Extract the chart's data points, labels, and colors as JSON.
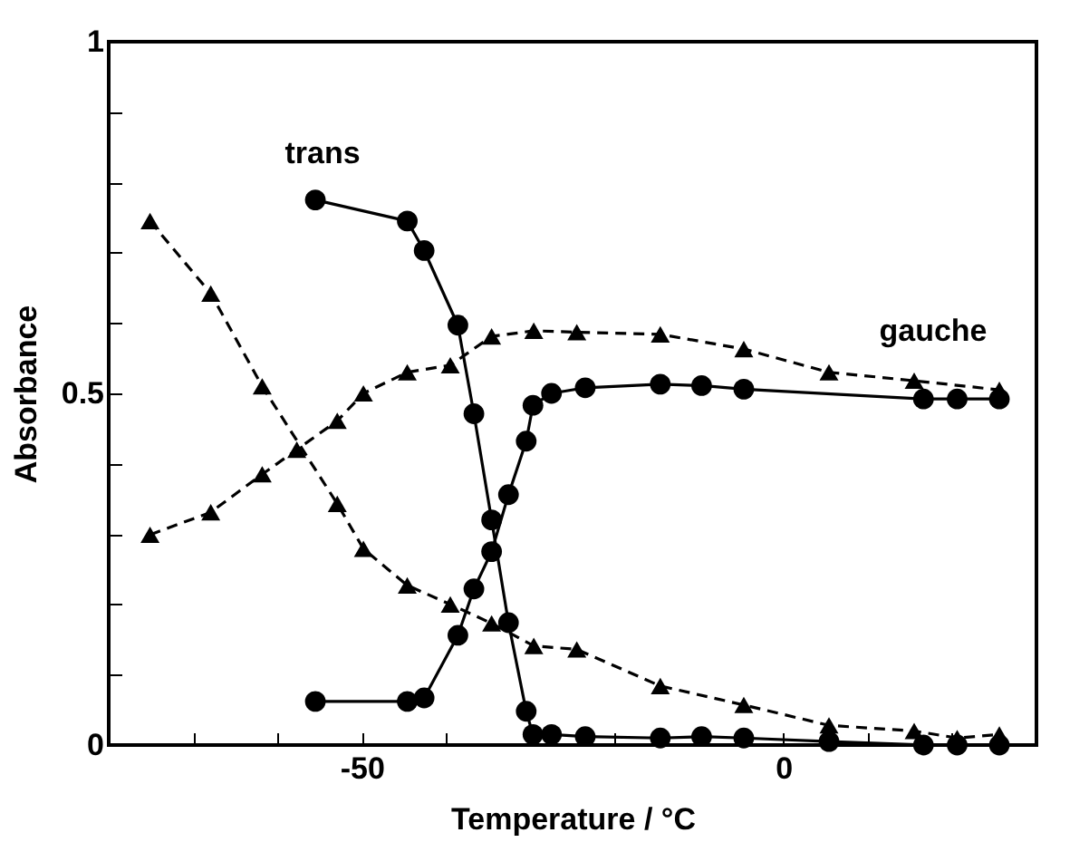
{
  "chart_data": {
    "type": "line",
    "xlabel": "Temperature / °C",
    "ylabel": "Absorbance",
    "annotations": [
      "trans",
      "gauche"
    ],
    "xlim": [
      -80,
      30
    ],
    "ylim": [
      0,
      1
    ],
    "xticks": [
      {
        "value": -70,
        "label": null
      },
      {
        "value": -60,
        "label": null
      },
      -50,
      {
        "value": -40,
        "label": null
      },
      {
        "value": -30,
        "label": null
      },
      {
        "value": -20,
        "label": null
      },
      {
        "value": -10,
        "label": null
      },
      0,
      {
        "value": 10,
        "label": null
      },
      {
        "value": 20,
        "label": null
      }
    ],
    "yticks": [
      0,
      {
        "value": 0.1,
        "label": null
      },
      {
        "value": 0.2,
        "label": null
      },
      {
        "value": 0.3,
        "label": null
      },
      {
        "value": 0.4,
        "label": null
      },
      0.5,
      {
        "value": 0.6,
        "label": null
      },
      {
        "value": 0.7,
        "label": null
      },
      {
        "value": 0.8,
        "label": null
      },
      {
        "value": 0.9,
        "label": null
      },
      1
    ],
    "grid": false,
    "series": [
      {
        "color": "#000000",
        "marker": "circle",
        "line_style": "solid",
        "x": [
          -55.5,
          -44.6,
          -42.6,
          -38.6,
          -36.7,
          -34.6,
          -32.6,
          -30.5,
          -29.7,
          -27.5,
          -23.5,
          -14.6,
          -9.7,
          -4.7,
          5.4,
          16.6,
          20.6,
          25.6
        ],
        "values": [
          0.775,
          0.745,
          0.703,
          0.597,
          0.471,
          0.32,
          0.174,
          0.048,
          0.015,
          0.015,
          0.012,
          0.01,
          0.012,
          0.01,
          0.005,
          0.0,
          0.0,
          0.0
        ]
      },
      {
        "color": "#000000",
        "marker": "circle",
        "line_style": "solid",
        "x": [
          -55.5,
          -44.6,
          -42.6,
          -38.6,
          -36.7,
          -34.6,
          -32.6,
          -30.5,
          -29.7,
          -27.5,
          -23.5,
          -14.6,
          -9.7,
          -4.7,
          16.6,
          20.6,
          25.6
        ],
        "values": [
          0.062,
          0.062,
          0.067,
          0.156,
          0.222,
          0.275,
          0.356,
          0.432,
          0.483,
          0.5,
          0.508,
          0.513,
          0.511,
          0.506,
          0.492,
          0.492,
          0.492
        ]
      },
      {
        "color": "#000000",
        "marker": "triangle",
        "line_style": "dashed",
        "x": [
          -75.1,
          -67.9,
          -61.8,
          -57.7,
          -52.9,
          -49.8,
          -44.6,
          -39.5,
          -34.6,
          -29.6,
          -24.5,
          -14.6,
          -4.7,
          5.4,
          15.5,
          25.6
        ],
        "values": [
          0.299,
          0.331,
          0.385,
          0.42,
          0.461,
          0.5,
          0.53,
          0.54,
          0.581,
          0.589,
          0.587,
          0.584,
          0.563,
          0.53,
          0.518,
          0.505
        ]
      },
      {
        "color": "#000000",
        "marker": "triangle",
        "line_style": "dashed",
        "x": [
          -75.1,
          -67.9,
          -61.8,
          -52.9,
          -49.8,
          -44.6,
          -39.5,
          -34.6,
          -29.6,
          -24.5,
          -14.6,
          -4.7,
          5.4,
          15.5,
          20.6,
          25.6
        ],
        "values": [
          0.745,
          0.642,
          0.51,
          0.343,
          0.279,
          0.227,
          0.2,
          0.173,
          0.141,
          0.136,
          0.084,
          0.057,
          0.028,
          0.02,
          0.01,
          0.015
        ]
      }
    ]
  }
}
